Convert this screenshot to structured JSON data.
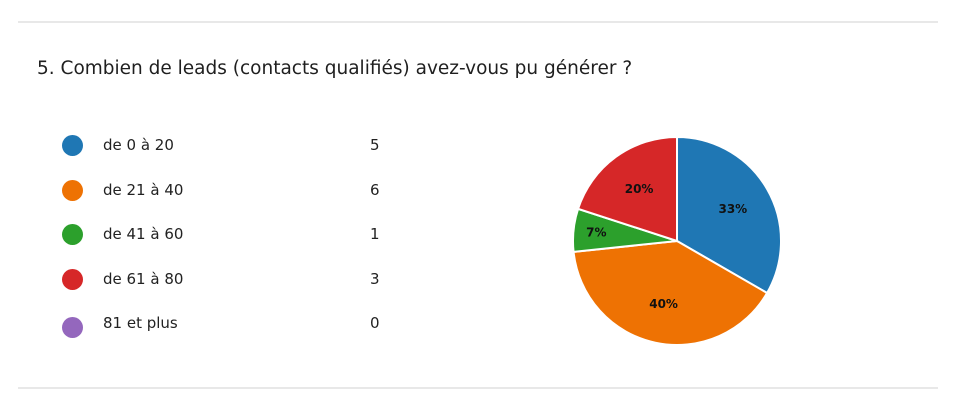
{
  "question": {
    "title": "5.  Combien de leads (contacts qualifiés) avez-vous pu générer ?"
  },
  "chart_data": {
    "type": "pie",
    "categories": [
      "de 0 à 20",
      "de 21 à 40",
      "de 41 à 60",
      "de 61 à 80",
      "81 et plus"
    ],
    "values": [
      5,
      6,
      1,
      3,
      0
    ],
    "percent_labels": [
      "33%",
      "40%",
      "7%",
      "20%",
      ""
    ],
    "colors": [
      "#1f77b4",
      "#ee7203",
      "#2ca02c",
      "#d62728",
      "#9467bd"
    ],
    "legend_position": "left"
  }
}
